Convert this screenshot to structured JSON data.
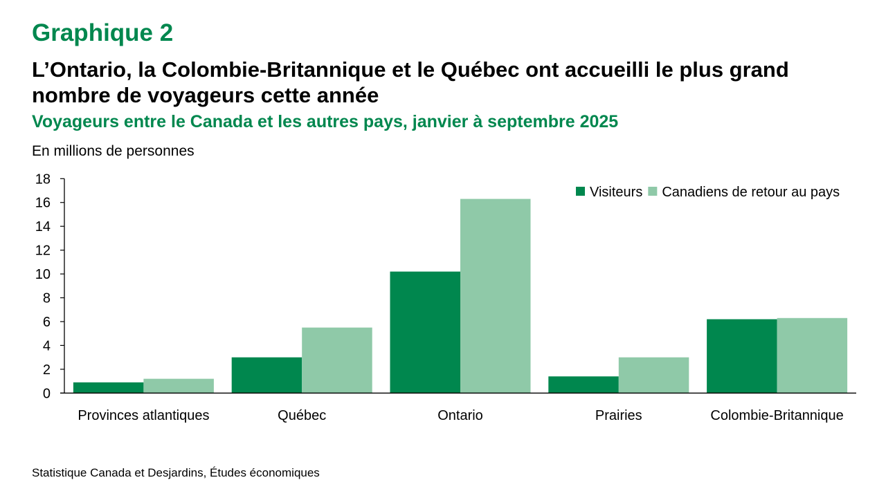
{
  "header": {
    "label": "Graphique 2",
    "title": "L’Ontario, la Colombie-Britannique et le Québec ont accueilli le plus grand nombre de voyageurs cette année",
    "subtitle": "Voyageurs entre le Canada et les autres pays, janvier à septembre 2025"
  },
  "source": "Statistique Canada et Desjardins, Études économiques",
  "chart_data": {
    "type": "bar",
    "title": "Voyageurs entre le Canada et les autres pays, janvier à septembre 2025",
    "ylabel": "En millions de personnes",
    "xlabel": "",
    "categories": [
      "Provinces atlantiques",
      "Québec",
      "Ontario",
      "Prairies",
      "Colombie-Britannique"
    ],
    "series": [
      {
        "name": "Visiteurs",
        "color": "#00874e",
        "values": [
          0.9,
          3.0,
          10.2,
          1.4,
          6.2
        ]
      },
      {
        "name": "Canadiens de retour au pays",
        "color": "#8fc9a8",
        "values": [
          1.2,
          5.5,
          16.3,
          3.0,
          6.3
        ]
      }
    ],
    "ylim": [
      0,
      18
    ],
    "yticks": [
      0,
      2,
      4,
      6,
      8,
      10,
      12,
      14,
      16,
      18
    ],
    "grid": false,
    "legend": "top-right"
  }
}
